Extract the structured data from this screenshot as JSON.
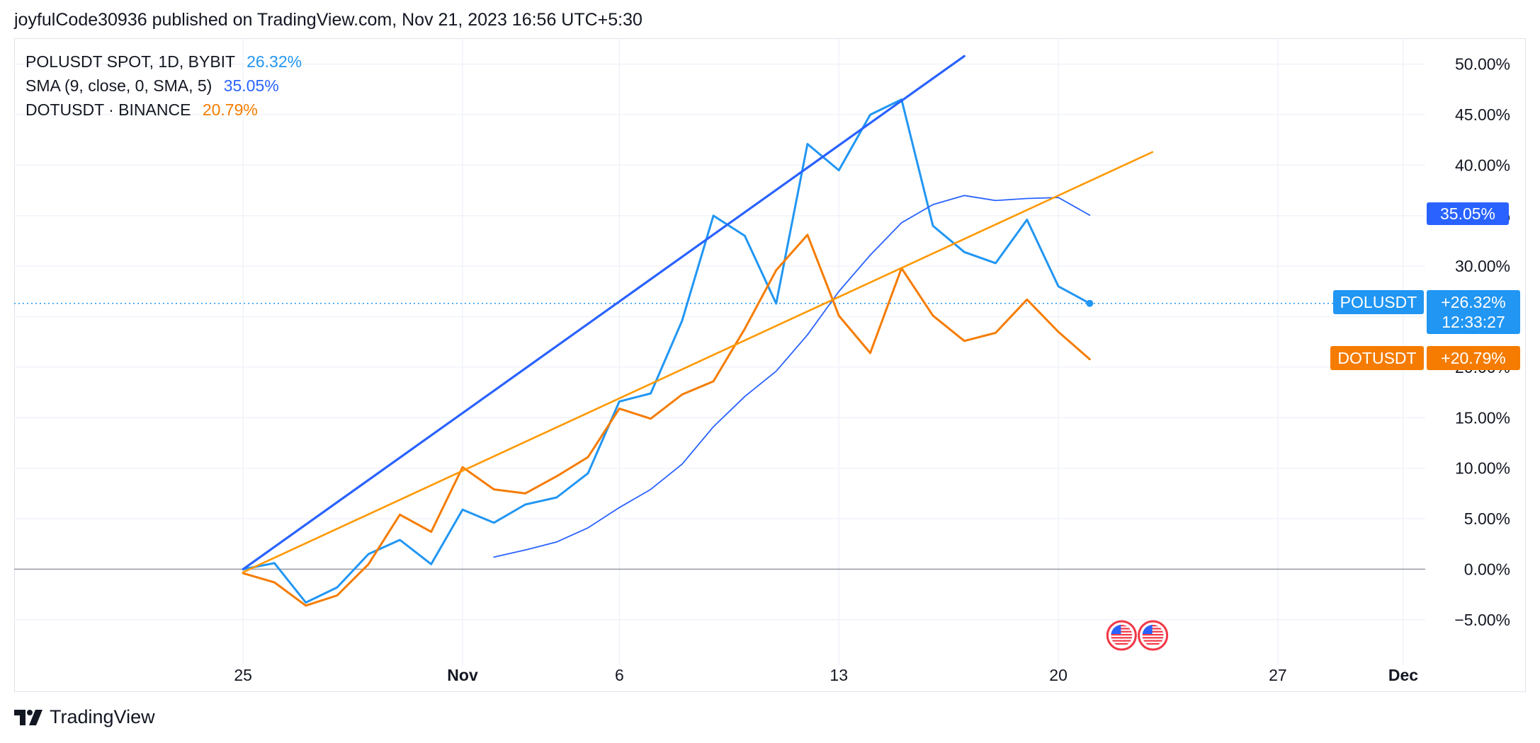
{
  "header": {
    "published_text": "joyfulCode30936 published on TradingView.com, Nov 21, 2023 16:56 UTC+5:30"
  },
  "legend": [
    {
      "name": "POLUSDT SPOT, 1D, BYBIT",
      "value": "26.32%",
      "color": "#2196f3"
    },
    {
      "name": "SMA (9, close, 0, SMA, 5)",
      "value": "35.05%",
      "color": "#2962ff"
    },
    {
      "name": "DOTUSDT · BINANCE",
      "value": "20.79%",
      "color": "#f57c00"
    }
  ],
  "price_tags": {
    "sma": {
      "value": "35.05%",
      "color": "#2962ff"
    },
    "pol": {
      "symbol": "POLUSDT",
      "value": "+26.32%",
      "countdown": "12:33:27",
      "color": "#2196f3"
    },
    "dot": {
      "symbol": "DOTUSDT",
      "value": "+20.79%",
      "color": "#f57c00"
    }
  },
  "footer": {
    "brand": "TradingView"
  },
  "icons": [
    "us-flag-event-icon",
    "us-flag-event-icon",
    "tradingview-logo-icon"
  ],
  "chart_data": {
    "type": "line",
    "x_axis": {
      "ticks": [
        {
          "label": "25",
          "day": 0,
          "bold": false
        },
        {
          "label": "Nov",
          "day": 7,
          "bold": true
        },
        {
          "label": "6",
          "day": 12,
          "bold": false
        },
        {
          "label": "13",
          "day": 19,
          "bold": false
        },
        {
          "label": "20",
          "day": 26,
          "bold": false
        },
        {
          "label": "27",
          "day": 33,
          "bold": false
        },
        {
          "label": "Dec",
          "day": 37,
          "bold": true
        }
      ],
      "range": [
        -7.3,
        37.7
      ]
    },
    "y_axis": {
      "ticks": [
        "50.00%",
        "45.00%",
        "40.00%",
        "35.00%",
        "30.00%",
        "25.00%",
        "20.00%",
        "15.00%",
        "10.00%",
        "5.00%",
        "0.00%",
        "−5.00%"
      ],
      "tick_values": [
        50,
        45,
        40,
        35,
        30,
        25,
        20,
        15,
        10,
        5,
        0,
        -5
      ],
      "range": [
        -9.5,
        52.5
      ],
      "zero_line": 0
    },
    "grid": true,
    "series": [
      {
        "name": "POLUSDT SPOT, 1D, BYBIT",
        "color": "#2196f3",
        "width": 3,
        "x": [
          0,
          1,
          2,
          3,
          4,
          5,
          6,
          7,
          8,
          9,
          10,
          11,
          12,
          13,
          14,
          15,
          16,
          17,
          18,
          19,
          20,
          21,
          22,
          23,
          24,
          25,
          26,
          27
        ],
        "values": [
          0,
          0.6,
          -3.3,
          -1.8,
          1.5,
          2.9,
          0.5,
          5.9,
          4.6,
          6.4,
          7.1,
          9.5,
          16.6,
          17.4,
          24.6,
          35.0,
          33.0,
          26.3,
          42.1,
          39.5,
          45.0,
          46.5,
          34.0,
          31.4,
          30.3,
          34.6,
          28.0,
          26.32
        ]
      },
      {
        "name": "SMA (9, close, 0, SMA, 5)",
        "color": "#2962ff",
        "width": 1.8,
        "x": [
          8,
          9,
          10,
          11,
          12,
          13,
          14,
          15,
          16,
          17,
          18,
          19,
          20,
          21,
          22,
          23,
          24,
          25,
          26,
          27
        ],
        "values": [
          1.2,
          1.9,
          2.7,
          4.1,
          6.1,
          7.9,
          10.4,
          14.1,
          17.1,
          19.6,
          23.2,
          27.5,
          31.1,
          34.3,
          36.1,
          37.0,
          36.5,
          36.7,
          36.8,
          35.05
        ]
      },
      {
        "name": "DOTUSDT · BINANCE",
        "color": "#f57c00",
        "width": 3,
        "x": [
          0,
          1,
          2,
          3,
          4,
          5,
          6,
          7,
          8,
          9,
          10,
          11,
          12,
          13,
          14,
          15,
          16,
          17,
          18,
          19,
          20,
          21,
          22,
          23,
          24,
          25,
          26,
          27
        ],
        "values": [
          -0.4,
          -1.3,
          -3.6,
          -2.6,
          0.5,
          5.4,
          3.7,
          10.1,
          7.9,
          7.5,
          9.2,
          11.1,
          15.9,
          14.9,
          17.3,
          18.6,
          23.8,
          29.6,
          33.1,
          25.1,
          21.4,
          29.8,
          25.1,
          22.6,
          23.4,
          26.7,
          23.5,
          20.79
        ]
      }
    ],
    "trendlines": [
      {
        "color": "#2962ff",
        "width": 3.2,
        "from": [
          0,
          0
        ],
        "to": [
          23,
          50.8
        ]
      },
      {
        "color": "#ff9800",
        "width": 2.6,
        "from": [
          0,
          -0.3
        ],
        "to": [
          29,
          41.3
        ]
      }
    ],
    "last_price_line": {
      "value": 26.32,
      "color": "#2196f3",
      "style": "dotted"
    },
    "events": [
      {
        "day": 27
      },
      {
        "day": 28
      }
    ]
  }
}
